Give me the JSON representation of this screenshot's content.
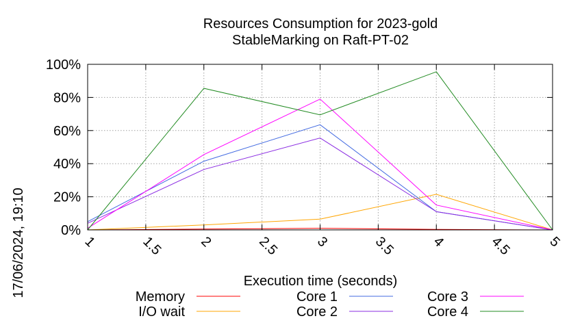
{
  "chart_data": {
    "type": "line",
    "title": [
      "Resources Consumption for 2023-gold",
      "StableMarking on Raft-PT-02"
    ],
    "xlabel": "Execution time (seconds)",
    "ylabel": "",
    "side_label": "17/06/2024, 19:10",
    "xlim": [
      1,
      5
    ],
    "ylim": [
      0,
      100
    ],
    "x_ticks": [
      1,
      1.5,
      2,
      2.5,
      3,
      3.5,
      4,
      4.5,
      5
    ],
    "x_tick_labels": [
      "1",
      "1.5",
      "2",
      "2.5",
      "3",
      "3.5",
      "4",
      "4.5",
      "5"
    ],
    "y_ticks": [
      0,
      20,
      40,
      60,
      80,
      100
    ],
    "y_tick_labels": [
      "0%",
      "20%",
      "40%",
      "60%",
      "80%",
      "100%"
    ],
    "grid": true,
    "legend_position": "bottom",
    "x": [
      1,
      2,
      3,
      4,
      5
    ],
    "series": [
      {
        "name": "Memory",
        "color": "#ff0000",
        "values": [
          0,
          0.5,
          1,
          0.3,
          0
        ]
      },
      {
        "name": "I/O wait",
        "color": "#ffa500",
        "values": [
          0,
          3,
          6.5,
          21.5,
          0
        ]
      },
      {
        "name": "Core 1",
        "color": "#4169e1",
        "values": [
          5,
          41.5,
          63.5,
          11,
          0
        ]
      },
      {
        "name": "Core 2",
        "color": "#8a2be2",
        "values": [
          4,
          36.5,
          55.5,
          11,
          0
        ]
      },
      {
        "name": "Core 3",
        "color": "#ff00ff",
        "values": [
          1,
          45.5,
          79,
          15,
          0
        ]
      },
      {
        "name": "Core 4",
        "color": "#228b22",
        "values": [
          0,
          85.5,
          69.5,
          95.5,
          0
        ]
      }
    ]
  }
}
